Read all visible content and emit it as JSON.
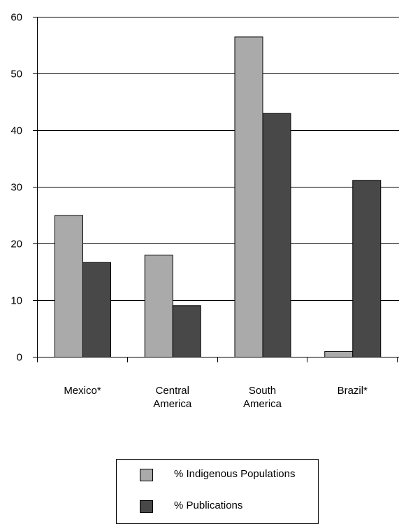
{
  "chart_data": {
    "type": "bar",
    "categories": [
      [
        "Mexico*"
      ],
      [
        "Central",
        "America"
      ],
      [
        "South",
        "America"
      ],
      [
        "Brazil*"
      ]
    ],
    "series": [
      {
        "name": "% Indigenous Populations",
        "values": [
          25,
          18,
          56.5,
          1
        ],
        "color": "#aaaaaa"
      },
      {
        "name": "% Publications",
        "values": [
          16.7,
          9.1,
          43,
          31.2
        ],
        "color": "#484848"
      }
    ],
    "yticks": [
      0,
      10,
      20,
      30,
      40,
      50,
      60
    ],
    "ylim": [
      0,
      60
    ],
    "grid": true,
    "legend_position": "bottom-center"
  }
}
